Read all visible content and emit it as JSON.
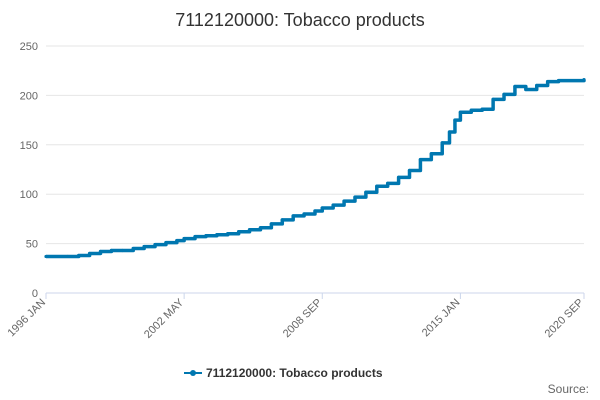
{
  "chart_data": {
    "type": "line",
    "title": "7112120000: Tobacco products",
    "xlabel": "",
    "ylabel": "",
    "x_start": "1996 JAN",
    "x_end": "2020 SEP",
    "ylim": [
      0,
      250
    ],
    "y_ticks": [
      0,
      50,
      100,
      150,
      200,
      250
    ],
    "x_tick_labels": [
      "1996 JAN",
      "2002 MAY",
      "2008 SEP",
      "2015 JAN",
      "2020 SEP"
    ],
    "grid": true,
    "legend_position": "bottom",
    "series": [
      {
        "name": "7112120000: Tobacco products",
        "color": "#0077b0",
        "points": [
          [
            "1996 JAN",
            37
          ],
          [
            "1997 JAN",
            37
          ],
          [
            "1997 JUL",
            38
          ],
          [
            "1998 JAN",
            40
          ],
          [
            "1998 JUL",
            42
          ],
          [
            "1999 JAN",
            43
          ],
          [
            "1999 JUL",
            43
          ],
          [
            "2000 JAN",
            45
          ],
          [
            "2000 JUL",
            47
          ],
          [
            "2001 JAN",
            49
          ],
          [
            "2001 JUL",
            51
          ],
          [
            "2002 JAN",
            53
          ],
          [
            "2002 MAY",
            55
          ],
          [
            "2002 NOV",
            57
          ],
          [
            "2003 MAY",
            58
          ],
          [
            "2003 NOV",
            59
          ],
          [
            "2004 MAY",
            60
          ],
          [
            "2004 NOV",
            62
          ],
          [
            "2005 MAY",
            64
          ],
          [
            "2005 NOV",
            66
          ],
          [
            "2006 MAY",
            70
          ],
          [
            "2006 NOV",
            74
          ],
          [
            "2007 MAY",
            78
          ],
          [
            "2007 NOV",
            80
          ],
          [
            "2008 MAY",
            83
          ],
          [
            "2008 SEP",
            86
          ],
          [
            "2009 MAR",
            89
          ],
          [
            "2009 SEP",
            93
          ],
          [
            "2010 MAR",
            97
          ],
          [
            "2010 SEP",
            102
          ],
          [
            "2011 MAR",
            108
          ],
          [
            "2011 SEP",
            111
          ],
          [
            "2012 MAR",
            117
          ],
          [
            "2012 SEP",
            124
          ],
          [
            "2013 MAR",
            135
          ],
          [
            "2013 SEP",
            141
          ],
          [
            "2014 MAR",
            152
          ],
          [
            "2014 JUL",
            163
          ],
          [
            "2014 OCT",
            175
          ],
          [
            "2015 JAN",
            183
          ],
          [
            "2015 JUL",
            185
          ],
          [
            "2016 JAN",
            186
          ],
          [
            "2016 JUL",
            196
          ],
          [
            "2017 JAN",
            201
          ],
          [
            "2017 JUL",
            209
          ],
          [
            "2018 JAN",
            206
          ],
          [
            "2018 JUL",
            210
          ],
          [
            "2019 JAN",
            214
          ],
          [
            "2019 JUL",
            215
          ],
          [
            "2020 SEP",
            216
          ]
        ]
      }
    ]
  },
  "source_label": "Source:"
}
